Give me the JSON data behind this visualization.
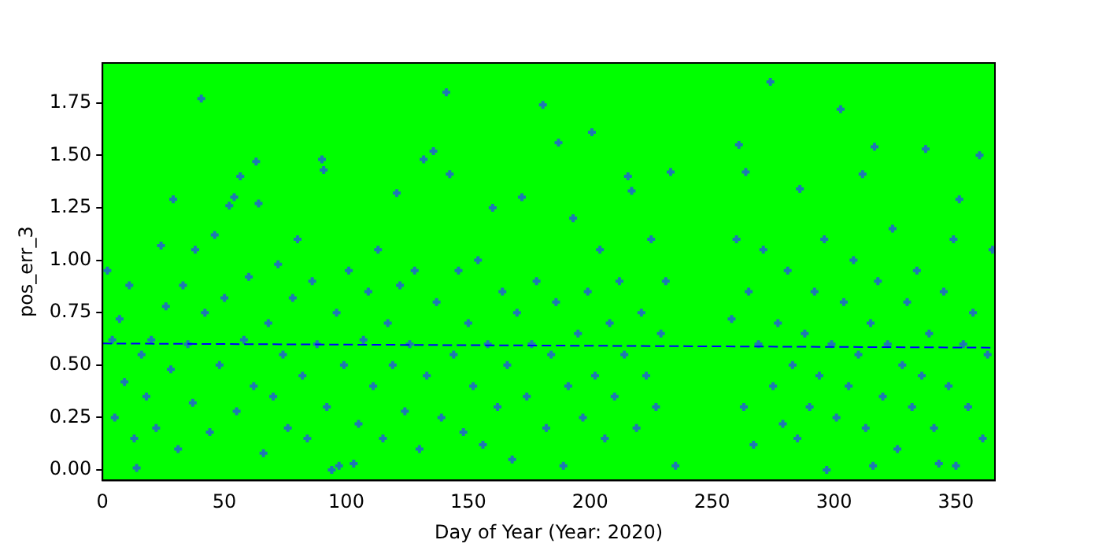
{
  "chart_data": {
    "type": "scatter",
    "xlabel": "Day of Year (Year: 2020)",
    "ylabel": "pos_err_3",
    "xlim": [
      0,
      366
    ],
    "xticks": [
      0,
      50,
      100,
      150,
      200,
      250,
      300,
      350
    ],
    "ylim": [
      -0.05,
      1.94
    ],
    "yticks": [
      {
        "value": 0,
        "label": "0.00"
      },
      {
        "value": 0.25,
        "label": "0.25"
      },
      {
        "value": 0.5,
        "label": "0.50"
      },
      {
        "value": 0.75,
        "label": "0.75"
      },
      {
        "value": 1,
        "label": "1.00"
      },
      {
        "value": 1.25,
        "label": "1.25"
      },
      {
        "value": 1.5,
        "label": "1.50"
      },
      {
        "value": 1.75,
        "label": "1.75"
      }
    ],
    "grid": false,
    "legend": false,
    "series": [
      {
        "type": "scatter",
        "color": "#1f77b4",
        "marker": "cross",
        "x": [
          2,
          4,
          5,
          7,
          9,
          11,
          13,
          14,
          16,
          18,
          20,
          22,
          24,
          26,
          28,
          29,
          31,
          33,
          35,
          37,
          38,
          40.5,
          42,
          44,
          46,
          48,
          50,
          52,
          54,
          55,
          56.5,
          58,
          60,
          62,
          63,
          64,
          66,
          68,
          70,
          72,
          74,
          76,
          78,
          80,
          82,
          84,
          86,
          88,
          90,
          90.7,
          92,
          94,
          96,
          97,
          99,
          101,
          103,
          105,
          107,
          109,
          111,
          113,
          115,
          117,
          119,
          120.7,
          122,
          124,
          126,
          128,
          130,
          131.7,
          133,
          135.7,
          137,
          139,
          141,
          142.4,
          144,
          146,
          148,
          150,
          152,
          154,
          156,
          158,
          160,
          162,
          164,
          166,
          168,
          170,
          172,
          174,
          176,
          178,
          180.6,
          182,
          184,
          186,
          187,
          189,
          191,
          193,
          195,
          197,
          199,
          200.7,
          202,
          204,
          206,
          208,
          210,
          212,
          214,
          215.5,
          217,
          219,
          221,
          223,
          225,
          227,
          229,
          231,
          233,
          235,
          258,
          260,
          261,
          263,
          263.8,
          265,
          267,
          269,
          271,
          273.9,
          275,
          277,
          279,
          281,
          283,
          285,
          286,
          288,
          290,
          292,
          294,
          296,
          297,
          299,
          301,
          302.7,
          304,
          306,
          308,
          310,
          311.7,
          313,
          315,
          316,
          316.6,
          318,
          320,
          322,
          324,
          326,
          328,
          330,
          332,
          334,
          336,
          337.6,
          339,
          341,
          343,
          345,
          347,
          349,
          350,
          351.4,
          353,
          355,
          357,
          359.7,
          361,
          363,
          365
        ],
        "values": [
          0.95,
          0.62,
          0.25,
          0.72,
          0.42,
          0.88,
          0.15,
          0.01,
          0.55,
          0.35,
          0.62,
          0.2,
          1.07,
          0.78,
          0.48,
          1.29,
          0.1,
          0.88,
          0.6,
          0.32,
          1.05,
          1.77,
          0.75,
          0.18,
          1.12,
          0.5,
          0.82,
          1.26,
          1.3,
          0.28,
          1.4,
          0.62,
          0.92,
          0.4,
          1.47,
          1.27,
          0.08,
          0.7,
          0.35,
          0.98,
          0.55,
          0.2,
          0.82,
          1.1,
          0.45,
          0.15,
          0.9,
          0.6,
          1.48,
          1.43,
          0.3,
          0.0,
          0.75,
          0.02,
          0.5,
          0.95,
          0.03,
          0.22,
          0.62,
          0.85,
          0.4,
          1.05,
          0.15,
          0.7,
          0.5,
          1.32,
          0.88,
          0.28,
          0.6,
          0.95,
          0.1,
          1.48,
          0.45,
          1.52,
          0.8,
          0.25,
          1.8,
          1.41,
          0.55,
          0.95,
          0.18,
          0.7,
          0.4,
          1.0,
          0.12,
          0.6,
          1.25,
          0.3,
          0.85,
          0.5,
          0.05,
          0.75,
          1.3,
          0.35,
          0.6,
          0.9,
          1.74,
          0.2,
          0.55,
          0.8,
          1.56,
          0.02,
          0.4,
          1.2,
          0.65,
          0.25,
          0.85,
          1.61,
          0.45,
          1.05,
          0.15,
          0.7,
          0.35,
          0.9,
          0.55,
          1.4,
          1.33,
          0.2,
          0.75,
          0.45,
          1.1,
          0.3,
          0.65,
          0.9,
          1.42,
          0.02,
          0.72,
          1.1,
          1.55,
          0.3,
          1.42,
          0.85,
          0.12,
          0.6,
          1.05,
          1.85,
          0.4,
          0.7,
          0.22,
          0.95,
          0.5,
          0.15,
          1.34,
          0.65,
          0.3,
          0.85,
          0.45,
          1.1,
          0.0,
          0.6,
          0.25,
          1.72,
          0.8,
          0.4,
          1.0,
          0.55,
          1.41,
          0.2,
          0.7,
          0.02,
          1.54,
          0.9,
          0.35,
          0.6,
          1.15,
          0.1,
          0.5,
          0.8,
          0.3,
          0.95,
          0.45,
          1.53,
          0.65,
          0.2,
          0.03,
          0.85,
          0.4,
          1.1,
          0.02,
          1.29,
          0.6,
          0.3,
          0.75,
          1.5,
          0.15,
          0.55,
          1.05
        ]
      },
      {
        "type": "line",
        "color": "#0000ff",
        "marker": "none",
        "line_style": "dashed",
        "x": [
          0,
          366
        ],
        "values": [
          0.603,
          0.583
        ]
      }
    ]
  }
}
